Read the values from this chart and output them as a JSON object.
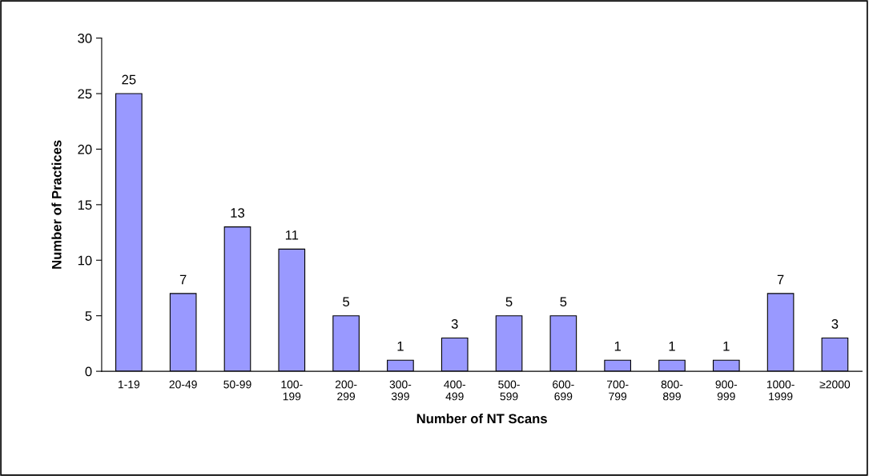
{
  "chart_data": {
    "type": "bar",
    "categories": [
      "1-19",
      "20-49",
      "50-99",
      "100-\n199",
      "200-\n299",
      "300-\n399",
      "400-\n499",
      "500-\n599",
      "600-\n699",
      "700-\n799",
      "800-\n899",
      "900-\n999",
      "1000-\n1999",
      "≥2000"
    ],
    "values": [
      25,
      7,
      13,
      11,
      5,
      1,
      3,
      5,
      5,
      1,
      1,
      1,
      7,
      3
    ],
    "color": "#9999ff",
    "xlabel": "Number of NT Scans",
    "ylabel": "Number of Practices",
    "ylim": [
      0,
      30
    ],
    "yticks": [
      0,
      5,
      10,
      15,
      20,
      25,
      30
    ],
    "grid": false,
    "data_labels": true
  }
}
